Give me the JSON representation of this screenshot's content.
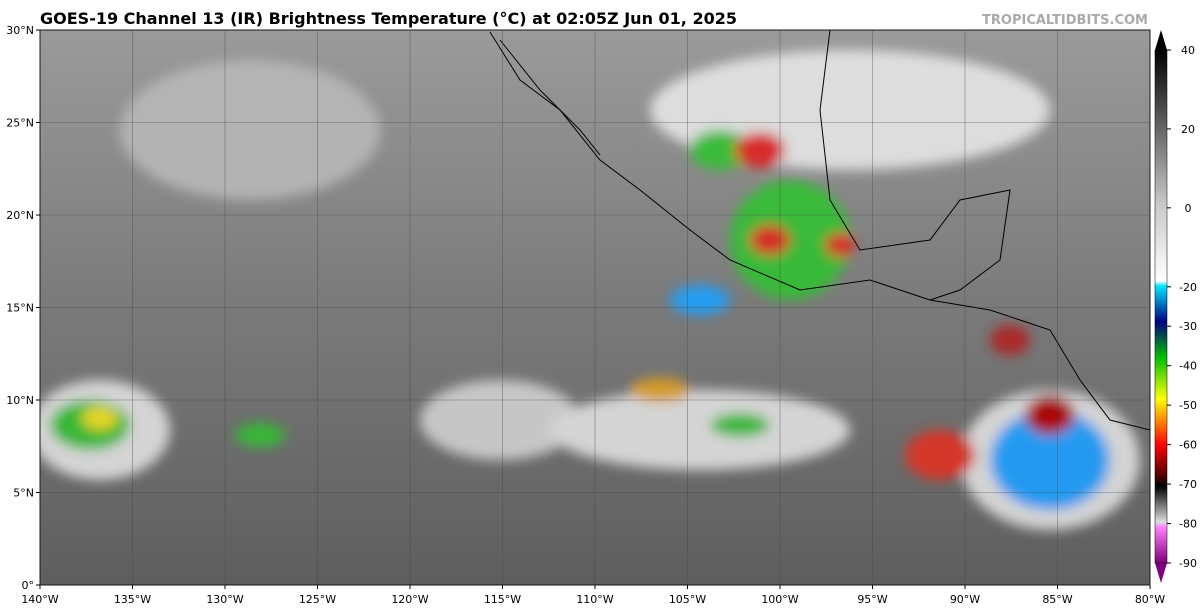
{
  "header": {
    "title": "GOES-19 Channel 13 (IR) Brightness Temperature (°C) at 02:05Z Jun 01, 2025",
    "credit": "TROPICALTIDBITS.COM"
  },
  "map": {
    "lon_labels": [
      "140°W",
      "135°W",
      "130°W",
      "125°W",
      "120°W",
      "115°W",
      "110°W",
      "105°W",
      "100°W",
      "95°W",
      "90°W",
      "85°W",
      "80°W"
    ],
    "lat_labels": [
      "0°",
      "5°N",
      "10°N",
      "15°N",
      "20°N",
      "25°N",
      "30°N"
    ]
  },
  "colorbar": {
    "range": [
      -90,
      40
    ],
    "ticks": [
      40,
      20,
      0,
      -20,
      -30,
      -40,
      -50,
      -60,
      -70,
      -80,
      -90
    ]
  }
}
